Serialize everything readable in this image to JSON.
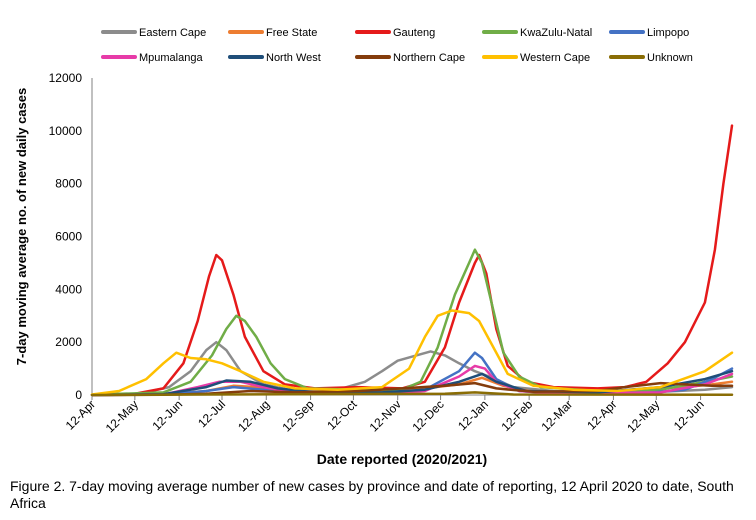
{
  "caption": "Figure 2. 7-day moving average number of new cases by province and date of reporting, 12 April 2020 to date, South Africa",
  "chart_data": {
    "type": "line",
    "title": "",
    "xlabel": "Date reported (2020/2021)",
    "ylabel": "7-day moving average no. of new daily cases",
    "ylim": [
      0,
      12000
    ],
    "yticks": [
      0,
      2000,
      4000,
      6000,
      8000,
      10000,
      12000
    ],
    "ytick_labels": [
      "0",
      "2000",
      "4000",
      "6000",
      "8000",
      "10000",
      "12000"
    ],
    "xlim": [
      "2020-04-12",
      "2021-07-04"
    ],
    "xticks": [
      "2020-04-12",
      "2020-05-12",
      "2020-06-12",
      "2020-07-12",
      "2020-08-12",
      "2020-09-12",
      "2020-10-12",
      "2020-11-12",
      "2020-12-12",
      "2021-01-12",
      "2021-02-12",
      "2021-03-12",
      "2021-04-12",
      "2021-05-12",
      "2021-06-12"
    ],
    "xtick_labels": [
      "12-Apr",
      "12-May",
      "12-Jun",
      "12-Jul",
      "12-Aug",
      "12-Sep",
      "12-Oct",
      "12-Nov",
      "12-Dec",
      "12-Jan",
      "12-Feb",
      "12-Mar",
      "12-Apr",
      "12-May",
      "12-Jun"
    ],
    "grid": false,
    "legend_position": "top",
    "series": [
      {
        "name": "Eastern Cape",
        "color": "#8c8c8c",
        "points": [
          [
            "2020-04-12",
            5
          ],
          [
            "2020-05-15",
            40
          ],
          [
            "2020-06-05",
            300
          ],
          [
            "2020-06-20",
            900
          ],
          [
            "2020-07-01",
            1700
          ],
          [
            "2020-07-08",
            2000
          ],
          [
            "2020-07-15",
            1700
          ],
          [
            "2020-07-25",
            900
          ],
          [
            "2020-08-10",
            400
          ],
          [
            "2020-09-01",
            150
          ],
          [
            "2020-10-01",
            200
          ],
          [
            "2020-10-20",
            500
          ],
          [
            "2020-11-01",
            900
          ],
          [
            "2020-11-12",
            1300
          ],
          [
            "2020-11-25",
            1500
          ],
          [
            "2020-12-05",
            1650
          ],
          [
            "2020-12-15",
            1500
          ],
          [
            "2020-12-25",
            1200
          ],
          [
            "2021-01-05",
            900
          ],
          [
            "2021-01-15",
            700
          ],
          [
            "2021-02-01",
            300
          ],
          [
            "2021-03-01",
            150
          ],
          [
            "2021-04-15",
            100
          ],
          [
            "2021-05-15",
            120
          ],
          [
            "2021-06-15",
            200
          ],
          [
            "2021-07-04",
            300
          ]
        ]
      },
      {
        "name": "Free State",
        "color": "#ed7d31",
        "points": [
          [
            "2020-04-12",
            0
          ],
          [
            "2020-06-01",
            30
          ],
          [
            "2020-07-01",
            150
          ],
          [
            "2020-07-20",
            350
          ],
          [
            "2020-08-05",
            300
          ],
          [
            "2020-09-01",
            120
          ],
          [
            "2020-10-01",
            100
          ],
          [
            "2020-11-01",
            120
          ],
          [
            "2020-12-01",
            250
          ],
          [
            "2020-12-25",
            400
          ],
          [
            "2021-01-10",
            650
          ],
          [
            "2021-01-25",
            350
          ],
          [
            "2021-02-15",
            120
          ],
          [
            "2021-04-01",
            100
          ],
          [
            "2021-05-10",
            250
          ],
          [
            "2021-06-01",
            300
          ],
          [
            "2021-06-20",
            400
          ],
          [
            "2021-07-04",
            500
          ]
        ]
      },
      {
        "name": "Gauteng",
        "color": "#e51a1a",
        "points": [
          [
            "2020-04-12",
            10
          ],
          [
            "2020-05-12",
            50
          ],
          [
            "2020-06-01",
            250
          ],
          [
            "2020-06-15",
            1200
          ],
          [
            "2020-06-25",
            2800
          ],
          [
            "2020-07-03",
            4500
          ],
          [
            "2020-07-08",
            5300
          ],
          [
            "2020-07-12",
            5100
          ],
          [
            "2020-07-20",
            3800
          ],
          [
            "2020-07-28",
            2200
          ],
          [
            "2020-08-10",
            900
          ],
          [
            "2020-08-25",
            400
          ],
          [
            "2020-09-15",
            250
          ],
          [
            "2020-10-15",
            300
          ],
          [
            "2020-11-15",
            250
          ],
          [
            "2020-12-01",
            500
          ],
          [
            "2020-12-15",
            1800
          ],
          [
            "2020-12-25",
            3500
          ],
          [
            "2021-01-05",
            5000
          ],
          [
            "2021-01-08",
            5300
          ],
          [
            "2021-01-13",
            4600
          ],
          [
            "2021-01-20",
            2500
          ],
          [
            "2021-01-28",
            1100
          ],
          [
            "2021-02-10",
            500
          ],
          [
            "2021-03-01",
            300
          ],
          [
            "2021-04-01",
            250
          ],
          [
            "2021-04-20",
            300
          ],
          [
            "2021-05-05",
            500
          ],
          [
            "2021-05-20",
            1200
          ],
          [
            "2021-06-01",
            2000
          ],
          [
            "2021-06-15",
            3500
          ],
          [
            "2021-06-22",
            5500
          ],
          [
            "2021-06-28",
            8000
          ],
          [
            "2021-07-04",
            10200
          ]
        ]
      },
      {
        "name": "KwaZulu-Natal",
        "color": "#70ad47",
        "points": [
          [
            "2020-04-12",
            10
          ],
          [
            "2020-06-01",
            100
          ],
          [
            "2020-06-20",
            500
          ],
          [
            "2020-07-05",
            1500
          ],
          [
            "2020-07-15",
            2500
          ],
          [
            "2020-07-22",
            3000
          ],
          [
            "2020-07-28",
            2800
          ],
          [
            "2020-08-05",
            2200
          ],
          [
            "2020-08-15",
            1200
          ],
          [
            "2020-08-25",
            600
          ],
          [
            "2020-09-10",
            250
          ],
          [
            "2020-10-15",
            200
          ],
          [
            "2020-11-15",
            200
          ],
          [
            "2020-11-28",
            500
          ],
          [
            "2020-12-10",
            1800
          ],
          [
            "2020-12-22",
            3800
          ],
          [
            "2021-01-01",
            5000
          ],
          [
            "2021-01-05",
            5500
          ],
          [
            "2021-01-10",
            5000
          ],
          [
            "2021-01-18",
            3200
          ],
          [
            "2021-01-25",
            1600
          ],
          [
            "2021-02-05",
            700
          ],
          [
            "2021-02-20",
            300
          ],
          [
            "2021-04-01",
            150
          ],
          [
            "2021-05-15",
            200
          ],
          [
            "2021-06-15",
            500
          ],
          [
            "2021-07-04",
            700
          ]
        ]
      },
      {
        "name": "Limpopo",
        "color": "#4472c4",
        "points": [
          [
            "2020-04-12",
            0
          ],
          [
            "2020-06-01",
            20
          ],
          [
            "2020-07-01",
            150
          ],
          [
            "2020-07-20",
            300
          ],
          [
            "2020-08-10",
            200
          ],
          [
            "2020-09-01",
            80
          ],
          [
            "2020-11-01",
            60
          ],
          [
            "2020-12-01",
            200
          ],
          [
            "2020-12-25",
            900
          ],
          [
            "2021-01-05",
            1600
          ],
          [
            "2021-01-10",
            1400
          ],
          [
            "2021-01-20",
            600
          ],
          [
            "2021-02-05",
            150
          ],
          [
            "2021-03-01",
            60
          ],
          [
            "2021-05-01",
            60
          ],
          [
            "2021-06-01",
            200
          ],
          [
            "2021-06-20",
            600
          ],
          [
            "2021-07-04",
            1000
          ]
        ]
      },
      {
        "name": "Mpumalanga",
        "color": "#e73ba8",
        "points": [
          [
            "2020-04-12",
            0
          ],
          [
            "2020-06-01",
            20
          ],
          [
            "2020-06-25",
            300
          ],
          [
            "2020-07-10",
            500
          ],
          [
            "2020-07-25",
            500
          ],
          [
            "2020-08-10",
            300
          ],
          [
            "2020-09-01",
            80
          ],
          [
            "2020-11-01",
            60
          ],
          [
            "2020-12-01",
            150
          ],
          [
            "2020-12-25",
            700
          ],
          [
            "2021-01-05",
            1100
          ],
          [
            "2021-01-12",
            1000
          ],
          [
            "2021-01-20",
            500
          ],
          [
            "2021-02-05",
            150
          ],
          [
            "2021-03-01",
            60
          ],
          [
            "2021-05-15",
            100
          ],
          [
            "2021-06-15",
            400
          ],
          [
            "2021-07-04",
            800
          ]
        ]
      },
      {
        "name": "North West",
        "color": "#1f4e79",
        "points": [
          [
            "2020-04-12",
            0
          ],
          [
            "2020-06-01",
            30
          ],
          [
            "2020-07-01",
            300
          ],
          [
            "2020-07-15",
            550
          ],
          [
            "2020-08-01",
            500
          ],
          [
            "2020-08-20",
            250
          ],
          [
            "2020-09-15",
            100
          ],
          [
            "2020-11-01",
            100
          ],
          [
            "2020-12-01",
            200
          ],
          [
            "2020-12-25",
            500
          ],
          [
            "2021-01-10",
            800
          ],
          [
            "2021-01-20",
            500
          ],
          [
            "2021-02-10",
            150
          ],
          [
            "2021-04-01",
            100
          ],
          [
            "2021-05-15",
            300
          ],
          [
            "2021-06-15",
            600
          ],
          [
            "2021-07-04",
            900
          ]
        ]
      },
      {
        "name": "Northern Cape",
        "color": "#843c0c",
        "points": [
          [
            "2020-04-12",
            0
          ],
          [
            "2020-06-01",
            10
          ],
          [
            "2020-07-01",
            50
          ],
          [
            "2020-08-01",
            150
          ],
          [
            "2020-09-01",
            100
          ],
          [
            "2020-10-15",
            150
          ],
          [
            "2020-11-15",
            250
          ],
          [
            "2020-12-15",
            350
          ],
          [
            "2021-01-05",
            450
          ],
          [
            "2021-01-20",
            250
          ],
          [
            "2021-02-15",
            120
          ],
          [
            "2021-04-01",
            150
          ],
          [
            "2021-04-20",
            300
          ],
          [
            "2021-05-15",
            450
          ],
          [
            "2021-06-01",
            400
          ],
          [
            "2021-06-20",
            350
          ],
          [
            "2021-07-04",
            350
          ]
        ]
      },
      {
        "name": "Western Cape",
        "color": "#ffc000",
        "points": [
          [
            "2020-04-12",
            20
          ],
          [
            "2020-05-01",
            150
          ],
          [
            "2020-05-20",
            600
          ],
          [
            "2020-06-01",
            1200
          ],
          [
            "2020-06-10",
            1600
          ],
          [
            "2020-06-20",
            1400
          ],
          [
            "2020-07-01",
            1350
          ],
          [
            "2020-07-12",
            1200
          ],
          [
            "2020-07-25",
            900
          ],
          [
            "2020-08-10",
            500
          ],
          [
            "2020-09-01",
            250
          ],
          [
            "2020-10-01",
            200
          ],
          [
            "2020-11-01",
            300
          ],
          [
            "2020-11-20",
            1000
          ],
          [
            "2020-12-01",
            2200
          ],
          [
            "2020-12-10",
            3000
          ],
          [
            "2020-12-20",
            3200
          ],
          [
            "2021-01-01",
            3100
          ],
          [
            "2021-01-08",
            2800
          ],
          [
            "2021-01-18",
            1800
          ],
          [
            "2021-01-28",
            800
          ],
          [
            "2021-02-15",
            350
          ],
          [
            "2021-03-15",
            200
          ],
          [
            "2021-04-15",
            150
          ],
          [
            "2021-05-15",
            300
          ],
          [
            "2021-06-15",
            900
          ],
          [
            "2021-07-04",
            1600
          ]
        ]
      },
      {
        "name": "Unknown",
        "color": "#8a6d05",
        "points": [
          [
            "2020-04-12",
            0
          ],
          [
            "2020-07-01",
            20
          ],
          [
            "2020-12-15",
            50
          ],
          [
            "2021-01-05",
            100
          ],
          [
            "2021-02-01",
            20
          ],
          [
            "2021-07-04",
            10
          ]
        ]
      }
    ]
  }
}
